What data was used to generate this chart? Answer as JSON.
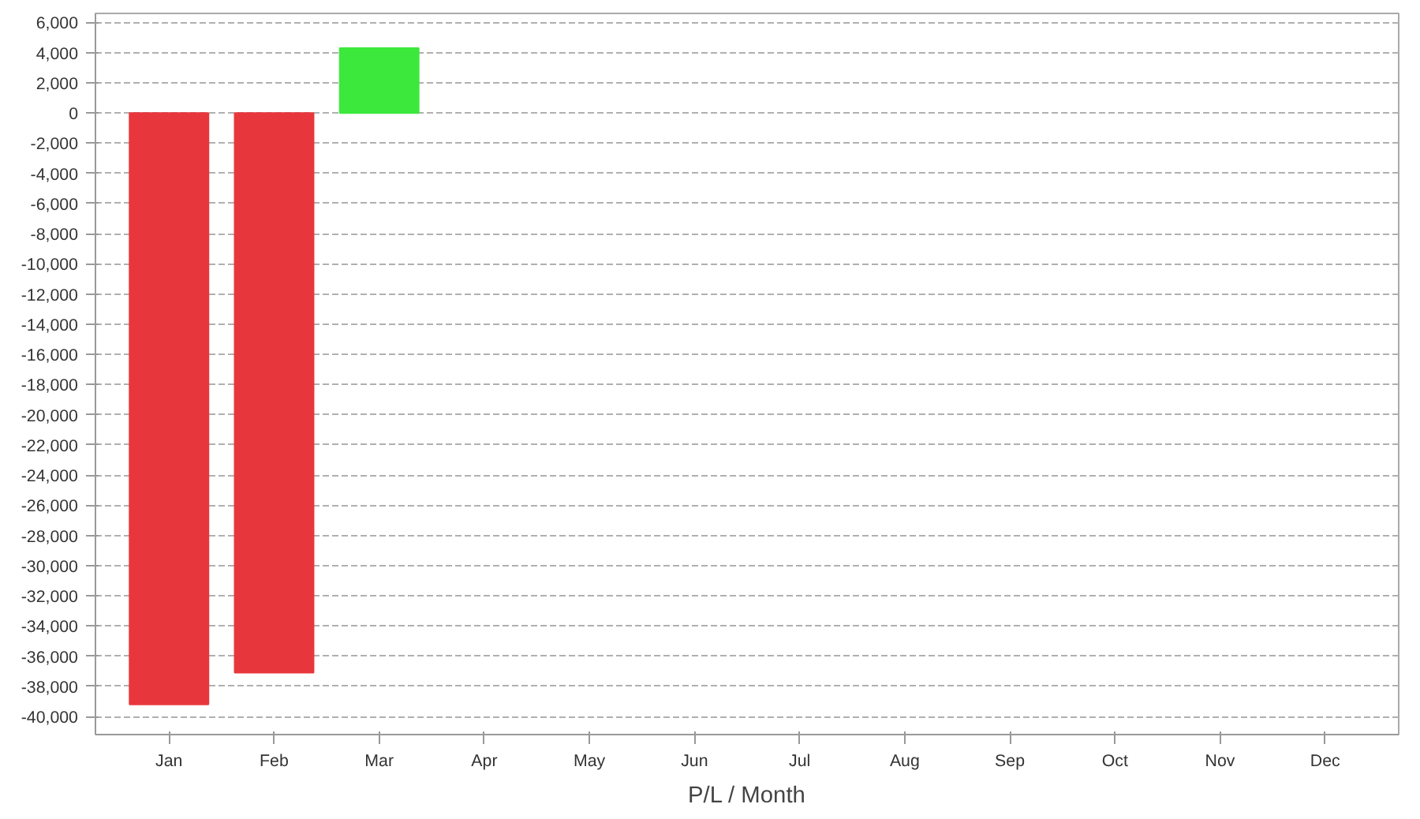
{
  "chart_data": {
    "type": "bar",
    "xlabel": "P/L / Month",
    "categories": [
      "Jan",
      "Feb",
      "Mar",
      "Apr",
      "May",
      "Jun",
      "Jul",
      "Aug",
      "Sep",
      "Oct",
      "Nov",
      "Dec"
    ],
    "values": [
      -39200,
      -37100,
      4300,
      null,
      null,
      null,
      null,
      null,
      null,
      null,
      null,
      null
    ],
    "colors": [
      "#e8373c",
      "#e8373c",
      "#3ce83c",
      null,
      null,
      null,
      null,
      null,
      null,
      null,
      null,
      null
    ],
    "ylim": [
      -41200,
      6600
    ],
    "yticks": [
      {
        "value": -40000,
        "label": "-40,000"
      },
      {
        "value": -38000,
        "label": "-38,000"
      },
      {
        "value": -36000,
        "label": "-36,000"
      },
      {
        "value": -34000,
        "label": "-34,000"
      },
      {
        "value": -32000,
        "label": "-32,000"
      },
      {
        "value": -30000,
        "label": "-30,000"
      },
      {
        "value": -28000,
        "label": "-28,000"
      },
      {
        "value": -26000,
        "label": "-26,000"
      },
      {
        "value": -24000,
        "label": "-24,000"
      },
      {
        "value": -22000,
        "label": "-22,000"
      },
      {
        "value": -20000,
        "label": "-20,000"
      },
      {
        "value": -18000,
        "label": "-18,000"
      },
      {
        "value": -16000,
        "label": "-16,000"
      },
      {
        "value": -14000,
        "label": "-14,000"
      },
      {
        "value": -12000,
        "label": "-12,000"
      },
      {
        "value": -10000,
        "label": "-10,000"
      },
      {
        "value": -8000,
        "label": "-8,000"
      },
      {
        "value": -6000,
        "label": "-6,000"
      },
      {
        "value": -4000,
        "label": "-4,000"
      },
      {
        "value": -2000,
        "label": "-2,000"
      },
      0,
      {
        "value": 2000,
        "label": "2,000"
      },
      {
        "value": 4000,
        "label": "4,000"
      },
      {
        "value": 6000,
        "label": "6,000"
      }
    ],
    "grid": "y"
  }
}
